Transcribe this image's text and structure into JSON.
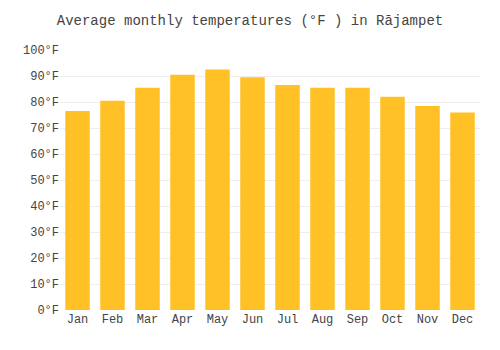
{
  "chart_data": {
    "type": "bar",
    "title": "Average monthly temperatures (°F ) in Rājampet",
    "categories": [
      "Jan",
      "Feb",
      "Mar",
      "Apr",
      "May",
      "Jun",
      "Jul",
      "Aug",
      "Sep",
      "Oct",
      "Nov",
      "Dec"
    ],
    "values": [
      76.5,
      80.5,
      85.5,
      90.5,
      92.5,
      89.5,
      86.5,
      85.5,
      85.5,
      82.0,
      78.5,
      76.0
    ],
    "color": "#FFC125",
    "ylim": [
      0,
      100
    ],
    "yticks": [
      {
        "value": 0,
        "label": "0°F"
      },
      {
        "value": 10,
        "label": "10°F"
      },
      {
        "value": 20,
        "label": "20°F"
      },
      {
        "value": 30,
        "label": "30°F"
      },
      {
        "value": 40,
        "label": "40°F"
      },
      {
        "value": 50,
        "label": "50°F"
      },
      {
        "value": 60,
        "label": "60°F"
      },
      {
        "value": 70,
        "label": "70°F"
      },
      {
        "value": 80,
        "label": "80°F"
      },
      {
        "value": 90,
        "label": "90°F"
      },
      {
        "value": 100,
        "label": "100°F"
      }
    ],
    "grid": true
  }
}
